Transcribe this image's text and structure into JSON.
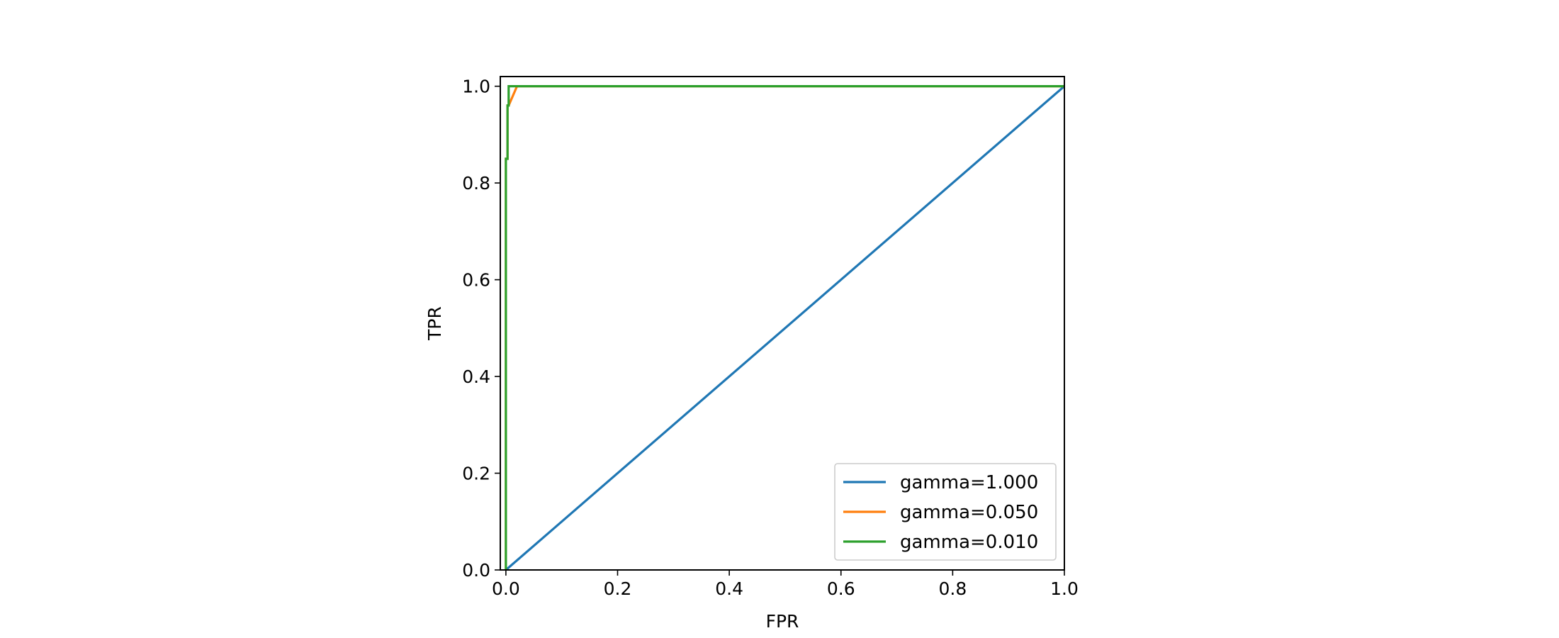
{
  "chart_data": {
    "type": "line",
    "xlabel": "FPR",
    "ylabel": "TPR",
    "xlim": [
      -0.01,
      1.0
    ],
    "ylim": [
      0.0,
      1.02
    ],
    "xticks": [
      0.0,
      0.2,
      0.4,
      0.6,
      0.8,
      1.0
    ],
    "yticks": [
      0.0,
      0.2,
      0.4,
      0.6,
      0.8,
      1.0
    ],
    "tick_labels_x": [
      "0.0",
      "0.2",
      "0.4",
      "0.6",
      "0.8",
      "1.0"
    ],
    "tick_labels_y": [
      "0.0",
      "0.2",
      "0.4",
      "0.6",
      "0.8",
      "1.0"
    ],
    "grid": false,
    "legend_position": "lower-right",
    "series": [
      {
        "name": "gamma=1.000",
        "color": "#1f77b4",
        "x": [
          0.0,
          1.0
        ],
        "y": [
          0.0,
          1.0
        ]
      },
      {
        "name": "gamma=0.050",
        "color": "#ff7f0e",
        "x": [
          0.0,
          0.0,
          0.003,
          0.003,
          0.005,
          0.02,
          1.0
        ],
        "y": [
          0.0,
          0.85,
          0.85,
          0.96,
          0.96,
          1.0,
          1.0
        ]
      },
      {
        "name": "gamma=0.010",
        "color": "#2ca02c",
        "x": [
          0.0,
          0.0,
          0.003,
          0.003,
          0.005,
          0.005,
          1.0
        ],
        "y": [
          0.0,
          0.85,
          0.85,
          0.96,
          0.96,
          1.0,
          1.0
        ]
      }
    ]
  }
}
